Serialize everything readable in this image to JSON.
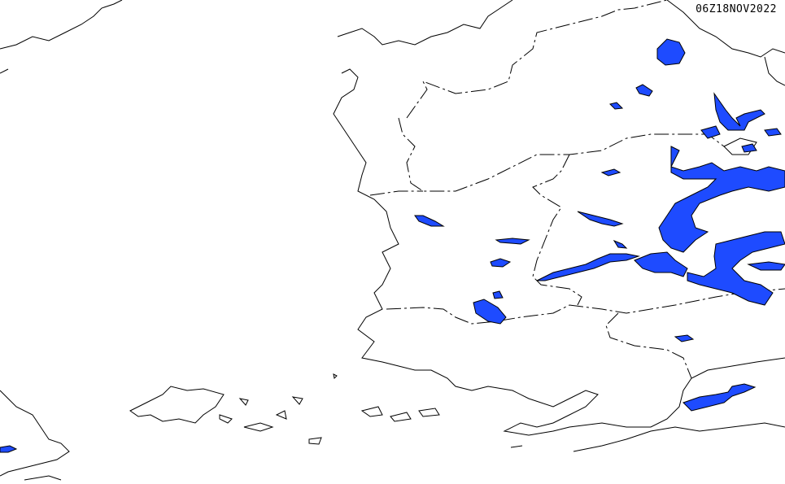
{
  "map": {
    "timestamp": "06Z18NOV2022",
    "colors": {
      "background": "#ffffff",
      "coastline": "#000000",
      "water": "#1e4bff"
    }
  }
}
